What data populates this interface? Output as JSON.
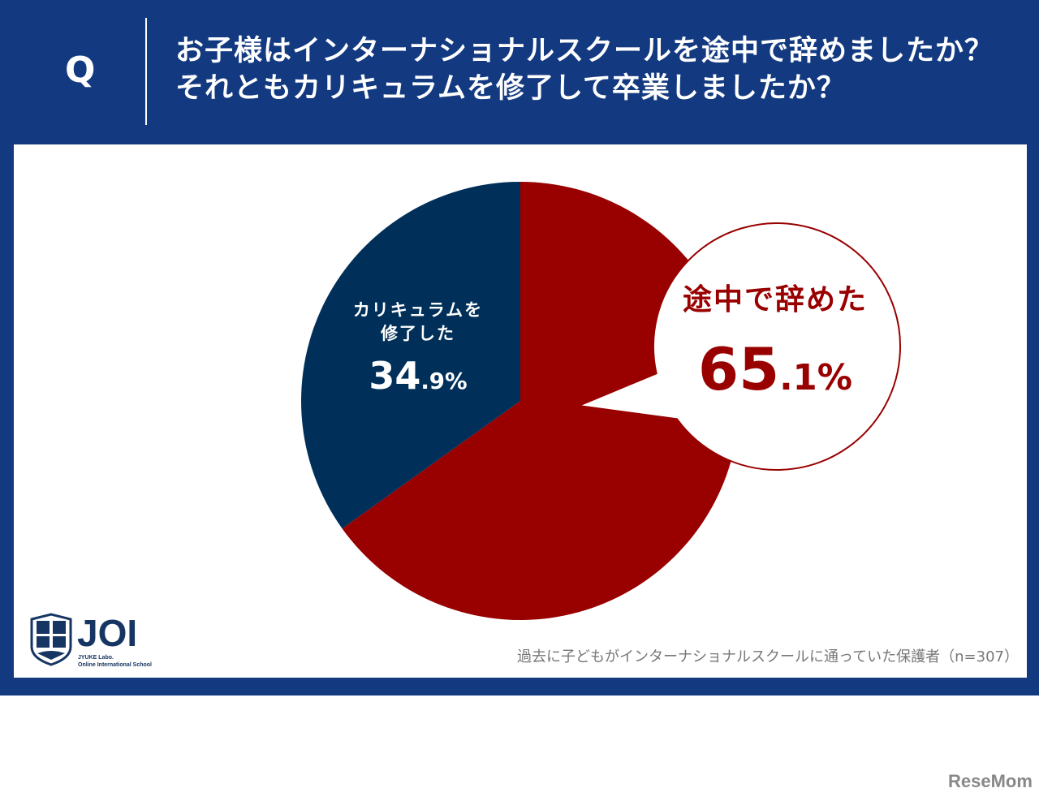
{
  "header": {
    "q_label": "Q",
    "title_line1": "お子様はインターナショナルスクールを途中で辞めましたか？",
    "title_line2": "それともカリキュラムを修了して卒業しましたか？"
  },
  "chart_data": {
    "type": "pie",
    "start": "12 o'clock",
    "direction": "clockwise",
    "slices": [
      {
        "label": "途中で辞めた",
        "value": 65.1,
        "display_int": "65",
        "display_dec": ".1%",
        "color": "#990000"
      },
      {
        "label": "カリキュラムを修了した",
        "label_line1": "カリキュラムを",
        "label_line2": "修了した",
        "value": 34.9,
        "display_int": "34",
        "display_dec": ".9%",
        "color": "#00305a"
      }
    ]
  },
  "footer": {
    "note": "過去に子どもがインターナショナルスクールに通っていた保護者（n=307）",
    "logo_text": "JOI",
    "logo_sub1": "JYUKE Labo.",
    "logo_sub2": "Online International School",
    "watermark": "ReseMom"
  },
  "colors": {
    "header_bg": "#133a80",
    "red": "#990000",
    "navy": "#00305a"
  }
}
